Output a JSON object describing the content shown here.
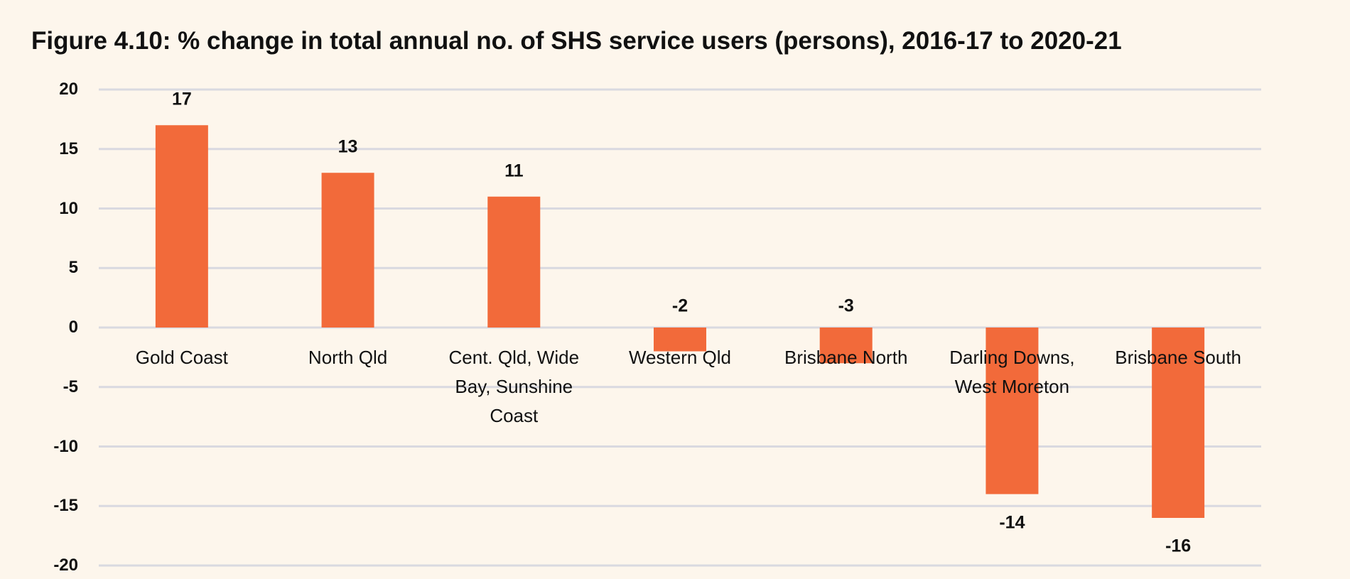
{
  "chart_data": {
    "type": "bar",
    "title": "Figure 4.10: % change in total annual no. of SHS service users (persons), 2016-17 to 2020-21",
    "categories": [
      "Gold Coast",
      "North Qld",
      "Cent. Qld, Wide Bay, Sunshine Coast",
      "Western Qld",
      "Brisbane North",
      "Darling Downs, West Moreton",
      "Brisbane South"
    ],
    "values": [
      17,
      13,
      11,
      -2,
      -3,
      -14,
      -16
    ],
    "color": "#f26a3a",
    "ylim": [
      -20,
      20
    ],
    "yticks": [
      -20,
      -15,
      -10,
      -5,
      0,
      5,
      10,
      15,
      20
    ],
    "grid": true
  }
}
